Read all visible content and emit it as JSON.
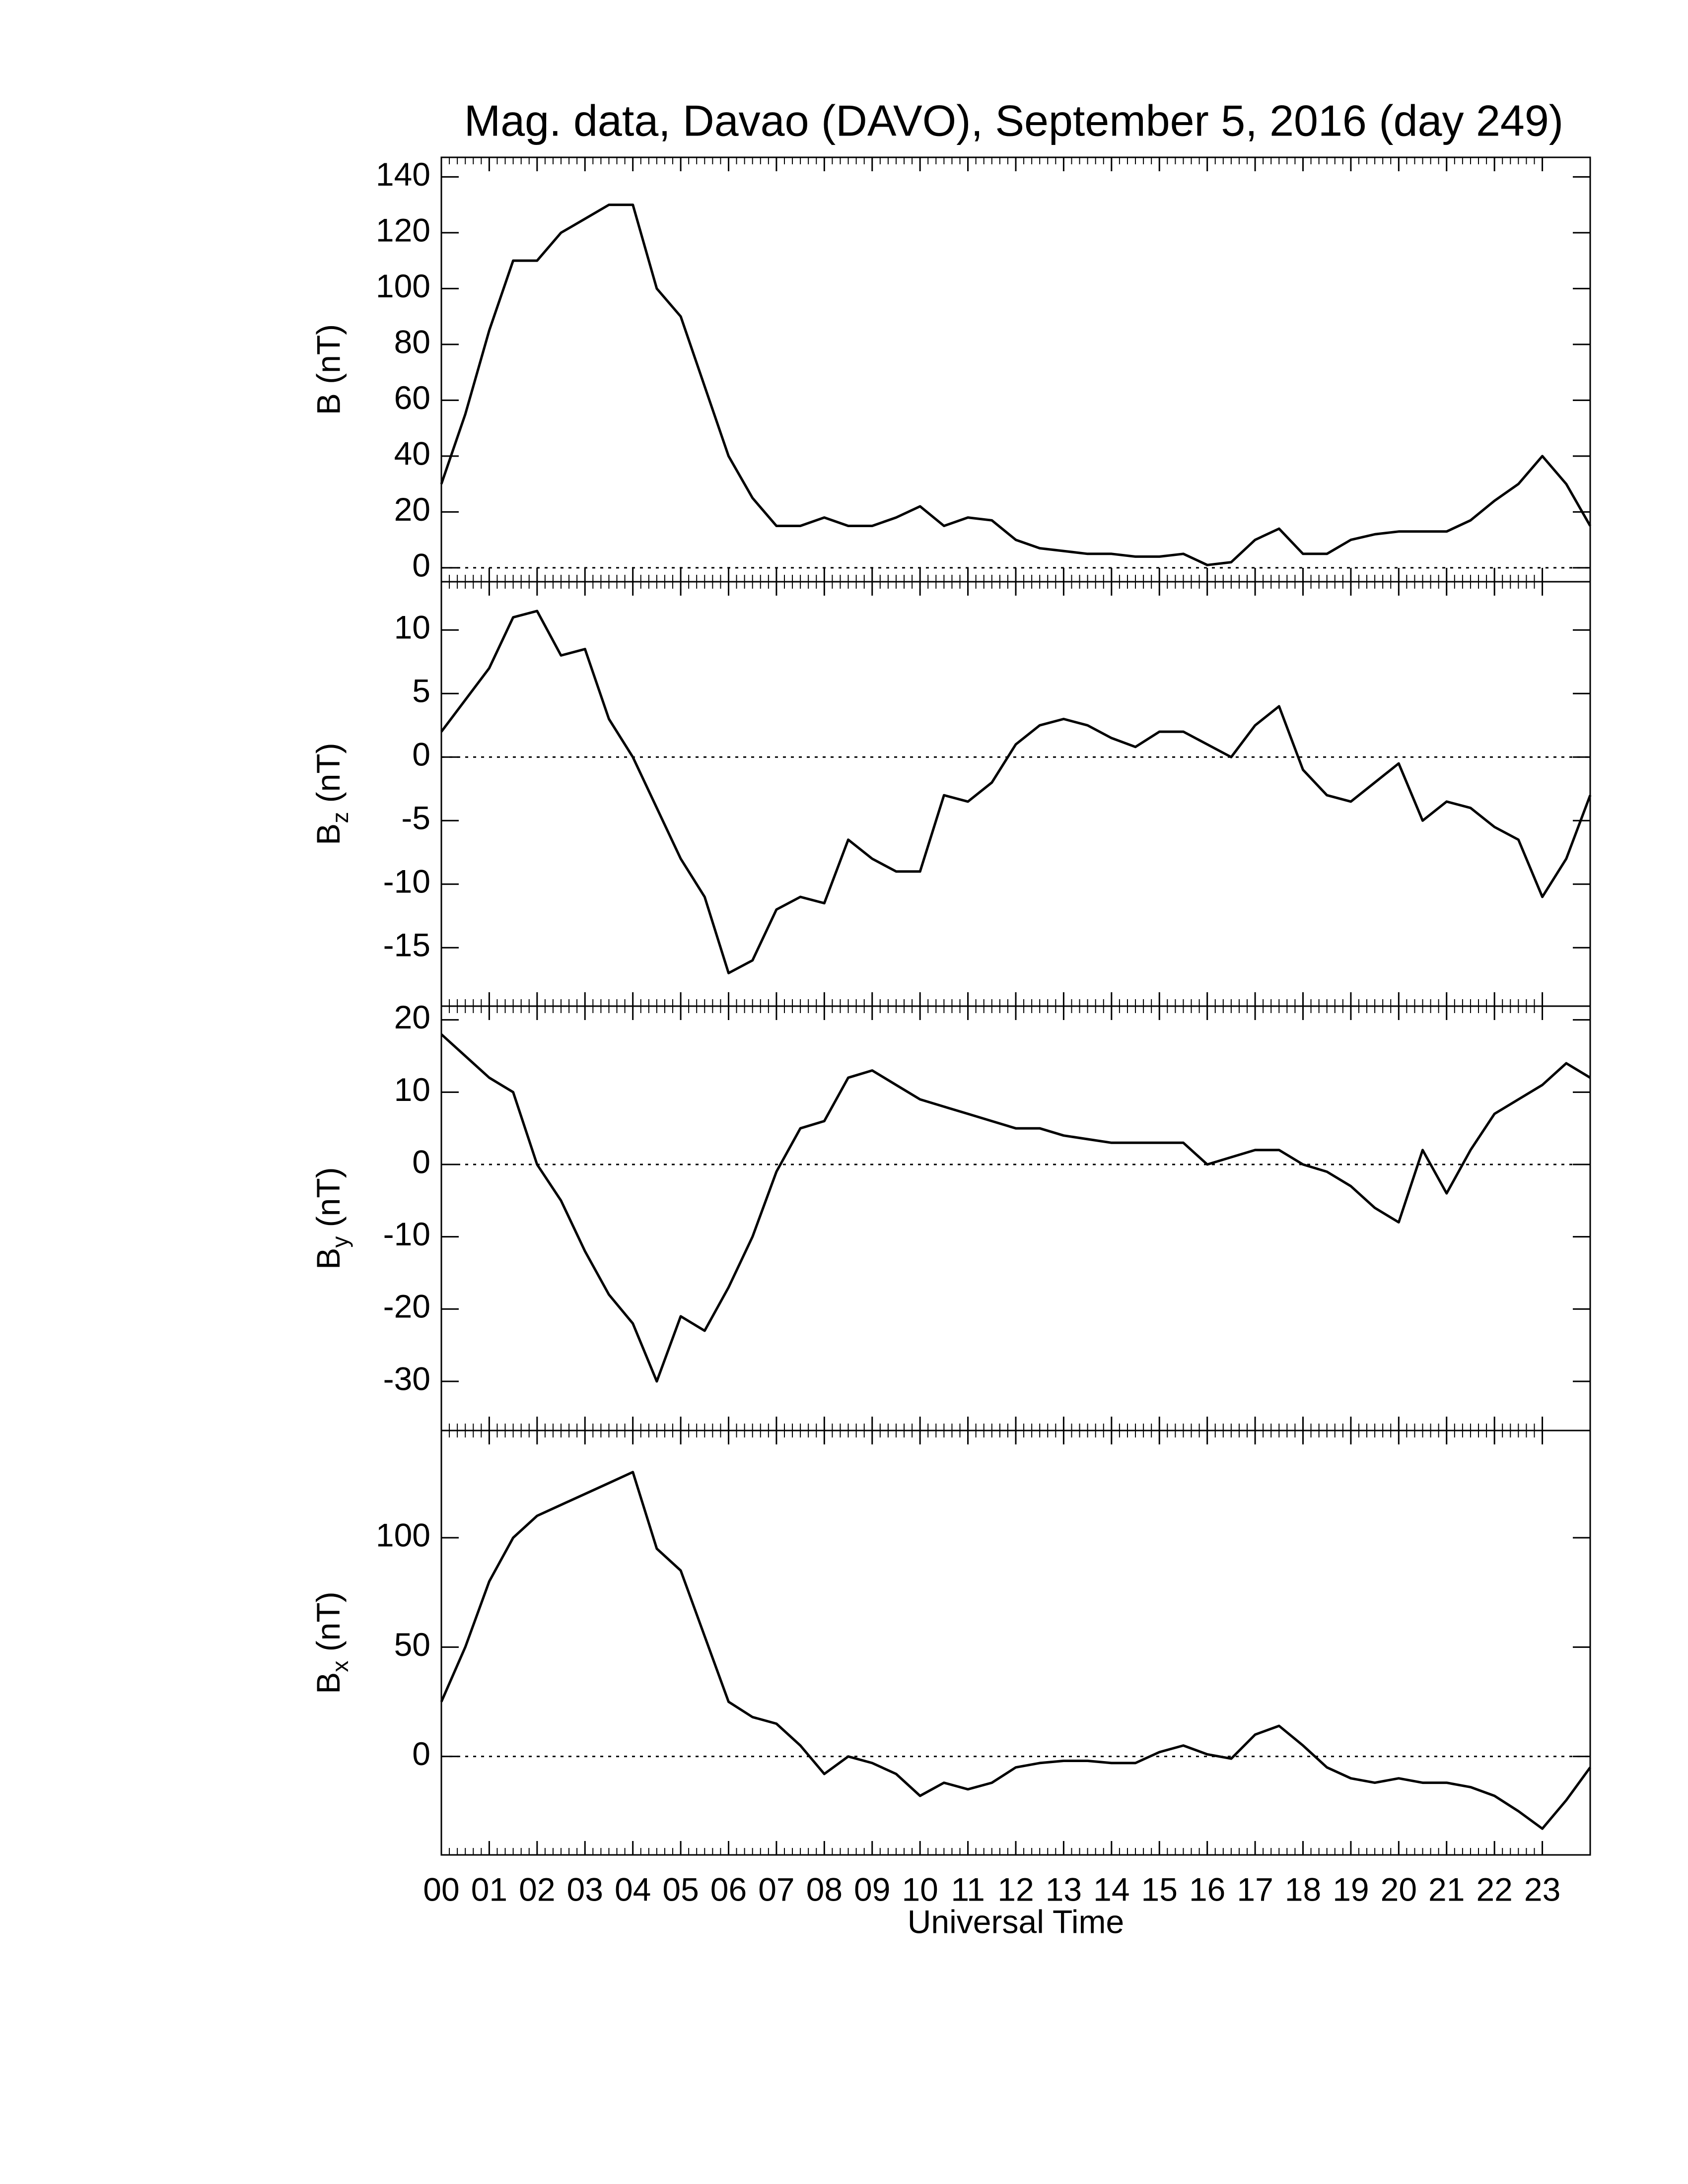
{
  "chart_data": [
    {
      "type": "line",
      "title": "Mag. data, Davao (DAVO), September 5, 2016 (day 249)",
      "ylabel": "B (nT)",
      "color": "#000000",
      "zero_line": true,
      "xlim": [
        0,
        24
      ],
      "xticks": [
        0,
        1,
        2,
        3,
        4,
        5,
        6,
        7,
        8,
        9,
        10,
        11,
        12,
        13,
        14,
        15,
        16,
        17,
        18,
        19,
        20,
        21,
        22,
        23
      ],
      "ylim": [
        -5,
        147
      ],
      "yticks": [
        0,
        20,
        40,
        60,
        80,
        100,
        120,
        140
      ],
      "x": [
        0,
        0.5,
        1,
        1.5,
        2,
        2.5,
        3,
        3.5,
        4,
        4.5,
        5,
        5.5,
        6,
        6.5,
        7,
        7.5,
        8,
        8.5,
        9,
        9.5,
        10,
        10.5,
        11,
        11.5,
        12,
        12.5,
        13,
        13.5,
        14,
        14.5,
        15,
        15.5,
        16,
        16.5,
        17,
        17.5,
        18,
        18.5,
        19,
        19.5,
        20,
        20.5,
        21,
        21.5,
        22,
        22.5,
        23,
        23.5,
        24
      ],
      "values": [
        30,
        55,
        85,
        110,
        110,
        120,
        125,
        130,
        130,
        100,
        90,
        65,
        40,
        25,
        15,
        15,
        18,
        15,
        15,
        18,
        22,
        15,
        18,
        17,
        10,
        7,
        6,
        5,
        5,
        4,
        4,
        5,
        1,
        2,
        10,
        14,
        5,
        5,
        10,
        12,
        13,
        13,
        13,
        17,
        24,
        30,
        40,
        30,
        15
      ]
    },
    {
      "type": "line",
      "ylabel": [
        "B",
        "z",
        " (nT)"
      ],
      "color": "#000000",
      "zero_line": true,
      "xlim": [
        0,
        24
      ],
      "xticks": [
        0,
        1,
        2,
        3,
        4,
        5,
        6,
        7,
        8,
        9,
        10,
        11,
        12,
        13,
        14,
        15,
        16,
        17,
        18,
        19,
        20,
        21,
        22,
        23
      ],
      "ylim": [
        -19.6,
        13.8
      ],
      "yticks": [
        10,
        5,
        0,
        -5,
        -10,
        -15
      ],
      "x": [
        0,
        0.5,
        1,
        1.5,
        2,
        2.5,
        3,
        3.5,
        4,
        4.5,
        5,
        5.5,
        6,
        6.5,
        7,
        7.5,
        8,
        8.5,
        9,
        9.5,
        10,
        10.5,
        11,
        11.5,
        12,
        12.5,
        13,
        13.5,
        14,
        14.5,
        15,
        15.5,
        16,
        16.5,
        17,
        17.5,
        18,
        18.5,
        19,
        19.5,
        20,
        20.5,
        21,
        21.5,
        22,
        22.5,
        23,
        23.5,
        24
      ],
      "values": [
        2,
        4.5,
        7,
        11,
        11.5,
        8,
        8.5,
        3,
        0,
        -4,
        -8,
        -11,
        -17,
        -16,
        -12,
        -11,
        -11.5,
        -6.5,
        -8,
        -9,
        -9,
        -3,
        -3.5,
        -2,
        1,
        2.5,
        3,
        2.5,
        1.5,
        0.8,
        2,
        2,
        1,
        0,
        2.5,
        4,
        -1,
        -3,
        -3.5,
        -2,
        -0.5,
        -5,
        -3.5,
        -4,
        -5.5,
        -6.5,
        -11,
        -8,
        -3
      ]
    },
    {
      "type": "line",
      "ylabel": [
        "B",
        "y",
        " (nT)"
      ],
      "color": "#000000",
      "zero_line": true,
      "xlim": [
        0,
        24
      ],
      "xticks": [
        0,
        1,
        2,
        3,
        4,
        5,
        6,
        7,
        8,
        9,
        10,
        11,
        12,
        13,
        14,
        15,
        16,
        17,
        18,
        19,
        20,
        21,
        22,
        23
      ],
      "ylim": [
        -36.8,
        21.9
      ],
      "yticks": [
        20,
        10,
        0,
        -10,
        -20,
        -30
      ],
      "x": [
        0,
        0.5,
        1,
        1.5,
        2,
        2.5,
        3,
        3.5,
        4,
        4.5,
        5,
        5.5,
        6,
        6.5,
        7,
        7.5,
        8,
        8.5,
        9,
        9.5,
        10,
        10.5,
        11,
        11.5,
        12,
        12.5,
        13,
        13.5,
        14,
        14.5,
        15,
        15.5,
        16,
        16.5,
        17,
        17.5,
        18,
        18.5,
        19,
        19.5,
        20,
        20.5,
        21,
        21.5,
        22,
        22.5,
        23,
        23.5,
        24
      ],
      "values": [
        18,
        15,
        12,
        10,
        0,
        -5,
        -12,
        -18,
        -22,
        -30,
        -21,
        -23,
        -17,
        -10,
        -1,
        5,
        6,
        12,
        13,
        11,
        9,
        8,
        7,
        6,
        5,
        5,
        4,
        3.5,
        3,
        3,
        3,
        3,
        0,
        1,
        2,
        2,
        0,
        -1,
        -3,
        -6,
        -8,
        2,
        -4,
        2,
        7,
        9,
        11,
        14,
        12
      ]
    },
    {
      "type": "line",
      "ylabel": [
        "B",
        "x",
        " (nT)"
      ],
      "xlabel": "Universal Time",
      "color": "#000000",
      "zero_line": true,
      "xlim": [
        0,
        24
      ],
      "xticks": [
        {
          "value": 0,
          "label": "00"
        },
        {
          "value": 1,
          "label": "01"
        },
        {
          "value": 2,
          "label": "02"
        },
        {
          "value": 3,
          "label": "03"
        },
        {
          "value": 4,
          "label": "04"
        },
        {
          "value": 5,
          "label": "05"
        },
        {
          "value": 6,
          "label": "06"
        },
        {
          "value": 7,
          "label": "07"
        },
        {
          "value": 8,
          "label": "08"
        },
        {
          "value": 9,
          "label": "09"
        },
        {
          "value": 10,
          "label": "10"
        },
        {
          "value": 11,
          "label": "11"
        },
        {
          "value": 12,
          "label": "12"
        },
        {
          "value": 13,
          "label": "13"
        },
        {
          "value": 14,
          "label": "14"
        },
        {
          "value": 15,
          "label": "15"
        },
        {
          "value": 16,
          "label": "16"
        },
        {
          "value": 17,
          "label": "17"
        },
        {
          "value": 18,
          "label": "18"
        },
        {
          "value": 19,
          "label": "19"
        },
        {
          "value": 20,
          "label": "20"
        },
        {
          "value": 21,
          "label": "21"
        },
        {
          "value": 22,
          "label": "22"
        },
        {
          "value": 23,
          "label": "23"
        }
      ],
      "ylim": [
        -45,
        149
      ],
      "yticks": [
        0,
        50,
        100
      ],
      "x": [
        0,
        0.5,
        1,
        1.5,
        2,
        2.5,
        3,
        3.5,
        4,
        4.5,
        5,
        5.5,
        6,
        6.5,
        7,
        7.5,
        8,
        8.5,
        9,
        9.5,
        10,
        10.5,
        11,
        11.5,
        12,
        12.5,
        13,
        13.5,
        14,
        14.5,
        15,
        15.5,
        16,
        16.5,
        17,
        17.5,
        18,
        18.5,
        19,
        19.5,
        20,
        20.5,
        21,
        21.5,
        22,
        22.5,
        23,
        23.5,
        24
      ],
      "values": [
        25,
        50,
        80,
        100,
        110,
        115,
        120,
        125,
        130,
        95,
        85,
        55,
        25,
        18,
        15,
        5,
        -8,
        0,
        -3,
        -8,
        -18,
        -12,
        -15,
        -12,
        -5,
        -3,
        -2,
        -2,
        -3,
        -3,
        2,
        5,
        1,
        -1,
        10,
        14,
        5,
        -5,
        -10,
        -12,
        -10,
        -12,
        -12,
        -14,
        -18,
        -25,
        -33,
        -20,
        -5
      ]
    }
  ]
}
